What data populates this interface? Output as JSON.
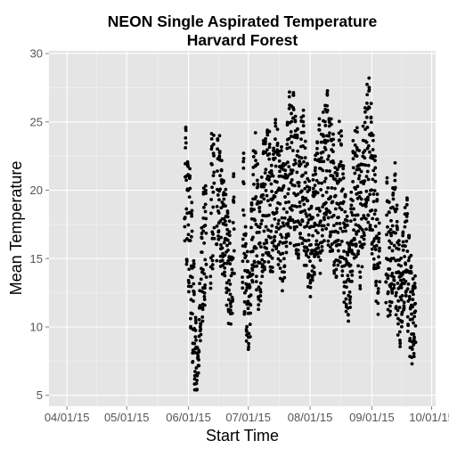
{
  "chart_data": {
    "type": "scatter",
    "title": [
      "NEON Single Aspirated Temperature",
      "Harvard Forest"
    ],
    "xlabel": "Start Time",
    "ylabel": "Mean Temperature",
    "xlim": [
      "2015-03-23",
      "2015-10-03"
    ],
    "ylim": [
      4.2,
      30.2
    ],
    "x_ticks": [
      "2015-04-01",
      "2015-05-01",
      "2015-06-01",
      "2015-07-01",
      "2015-08-01",
      "2015-09-01",
      "2015-10-01"
    ],
    "x_tick_labels": [
      "04/01/15",
      "05/01/15",
      "06/01/15",
      "07/01/15",
      "08/01/15",
      "09/01/15",
      "10/01/15"
    ],
    "y_ticks": [
      5,
      10,
      15,
      20,
      25,
      30
    ],
    "grid": true,
    "legend": "none",
    "background": "#e5e5e5",
    "grid_color": "#ffffff",
    "point_color": "#000000",
    "series": [
      {
        "x_start": "2015-05-30",
        "x_end": "2015-09-22",
        "points_per_day": 16,
        "values_daily_mean": [
          21.0,
          18.5,
          17.0,
          14.0,
          11.0,
          8.0,
          7.0,
          10.0,
          13.5,
          15.5,
          16.0,
          15.0,
          17.0,
          18.5,
          19.0,
          18.0,
          19.5,
          20.0,
          18.0,
          17.5,
          16.5,
          15.0,
          14.0,
          13.0,
          16.5,
          17.5,
          20.5,
          21.0,
          19.5,
          18.0,
          14.5,
          12.0,
          11.0,
          15.0,
          18.0,
          19.0,
          17.5,
          15.0,
          16.5,
          18.5,
          19.0,
          20.0,
          19.5,
          18.0,
          19.0,
          20.5,
          20.0,
          19.0,
          18.5,
          17.5,
          18.0,
          20.0,
          21.5,
          21.0,
          22.5,
          21.0,
          20.0,
          19.0,
          20.5,
          21.0,
          19.0,
          18.0,
          16.5,
          15.5,
          17.0,
          18.5,
          19.5,
          20.0,
          19.0,
          20.5,
          21.5,
          22.5,
          21.0,
          20.0,
          19.5,
          18.0,
          17.5,
          20.0,
          19.5,
          18.0,
          16.0,
          14.5,
          13.5,
          16.0,
          18.5,
          19.5,
          20.0,
          18.5,
          17.5,
          19.5,
          21.0,
          22.5,
          23.0,
          21.5,
          19.5,
          18.0,
          16.0,
          14.5,
          16.0,
          17.5,
          18.0,
          16.5,
          15.0,
          14.5,
          16.5,
          17.5,
          15.0,
          13.0,
          12.0,
          13.5,
          14.5,
          15.5,
          13.5,
          11.5,
          10.5,
          11.0
        ],
        "values_daily_amplitude": [
          4.0,
          4.0,
          4.5,
          4.5,
          3.5,
          2.5,
          1.5,
          2.5,
          4.0,
          4.5,
          4.5,
          4.5,
          4.5,
          5.0,
          5.0,
          4.5,
          4.0,
          3.5,
          3.5,
          3.5,
          3.0,
          3.0,
          3.0,
          2.5,
          4.0,
          4.5,
          4.5,
          5.0,
          4.5,
          4.5,
          3.5,
          3.0,
          2.5,
          4.0,
          4.5,
          4.5,
          4.5,
          4.0,
          4.5,
          4.5,
          5.0,
          4.5,
          4.5,
          4.0,
          4.5,
          4.5,
          4.0,
          4.0,
          4.5,
          4.5,
          4.0,
          4.5,
          5.0,
          4.5,
          5.0,
          4.5,
          4.5,
          4.0,
          4.5,
          4.5,
          4.0,
          3.5,
          3.5,
          3.0,
          4.0,
          4.0,
          4.5,
          5.0,
          4.5,
          4.5,
          4.5,
          5.0,
          4.5,
          4.5,
          4.5,
          4.0,
          4.0,
          4.5,
          4.5,
          4.0,
          3.5,
          3.0,
          3.0,
          4.0,
          4.5,
          4.5,
          4.5,
          4.0,
          4.0,
          4.5,
          4.5,
          5.0,
          5.0,
          4.5,
          4.5,
          4.0,
          3.5,
          3.0,
          4.0,
          4.0,
          4.5,
          4.0,
          3.5,
          3.5,
          4.0,
          4.0,
          3.5,
          3.0,
          3.0,
          3.5,
          3.5,
          4.0,
          3.5,
          3.0,
          2.5,
          2.5
        ],
        "gaps": [
          [
            "2015-06-10",
            "2015-06-11"
          ],
          [
            "2015-06-14",
            "2015-06-14"
          ],
          [
            "2015-06-24",
            "2015-06-27"
          ],
          [
            "2015-09-05",
            "2015-09-07"
          ]
        ]
      }
    ]
  }
}
